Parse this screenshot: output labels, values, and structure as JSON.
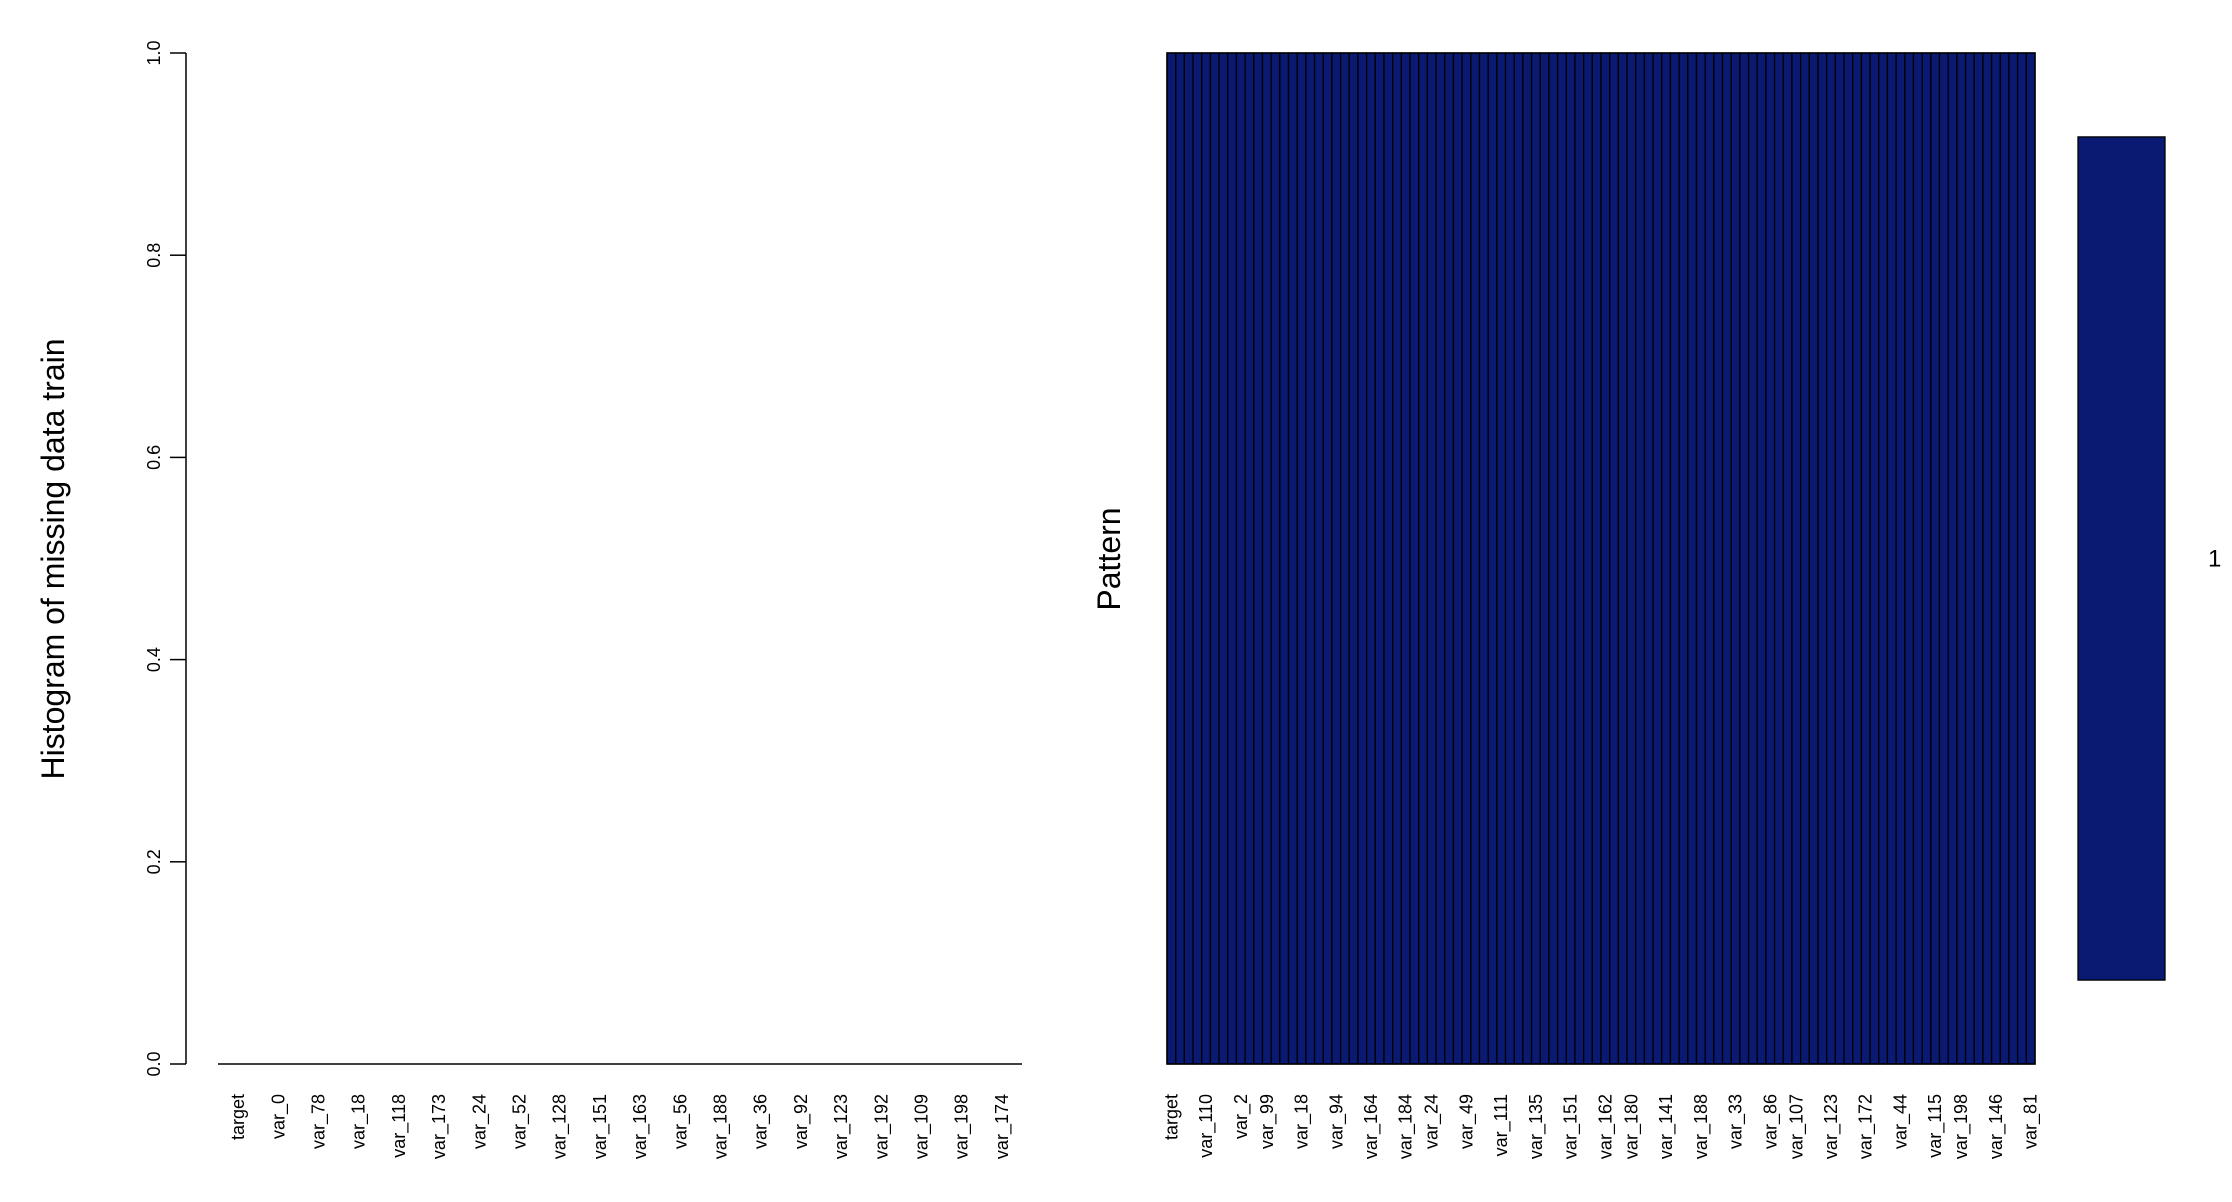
{
  "chart_data": [
    {
      "type": "bar",
      "ylabel": "Histogram of missing data train",
      "ylim": [
        0,
        1.0
      ],
      "y_ticks": [
        "0.0",
        "0.2",
        "0.4",
        "0.6",
        "0.8",
        "1.0"
      ],
      "categories": [
        "target",
        "var_0",
        "var_78",
        "var_18",
        "var_118",
        "var_173",
        "var_24",
        "var_52",
        "var_128",
        "var_151",
        "var_163",
        "var_56",
        "var_188",
        "var_36",
        "var_92",
        "var_123",
        "var_192",
        "var_109",
        "var_198",
        "var_174"
      ],
      "values": [
        0,
        0,
        0,
        0,
        0,
        0,
        0,
        0,
        0,
        0,
        0,
        0,
        0,
        0,
        0,
        0,
        0,
        0,
        0,
        0
      ]
    },
    {
      "type": "heatmap",
      "ylabel": "Pattern",
      "observed_color": "#0a1a72",
      "num_columns": 100,
      "x_labels": [
        "target",
        "var_110",
        "var_2",
        "var_99",
        "var_18",
        "var_94",
        "var_164",
        "var_184",
        "var_24",
        "var_49",
        "var_111",
        "var_135",
        "var_151",
        "var_162",
        "var_180",
        "var_141",
        "var_188",
        "var_33",
        "var_86",
        "var_107",
        "var_123",
        "var_172",
        "var_44",
        "var_115",
        "var_198",
        "var_146",
        "var_81"
      ],
      "patterns": [
        {
          "count": "1",
          "missing": 0
        }
      ]
    }
  ]
}
